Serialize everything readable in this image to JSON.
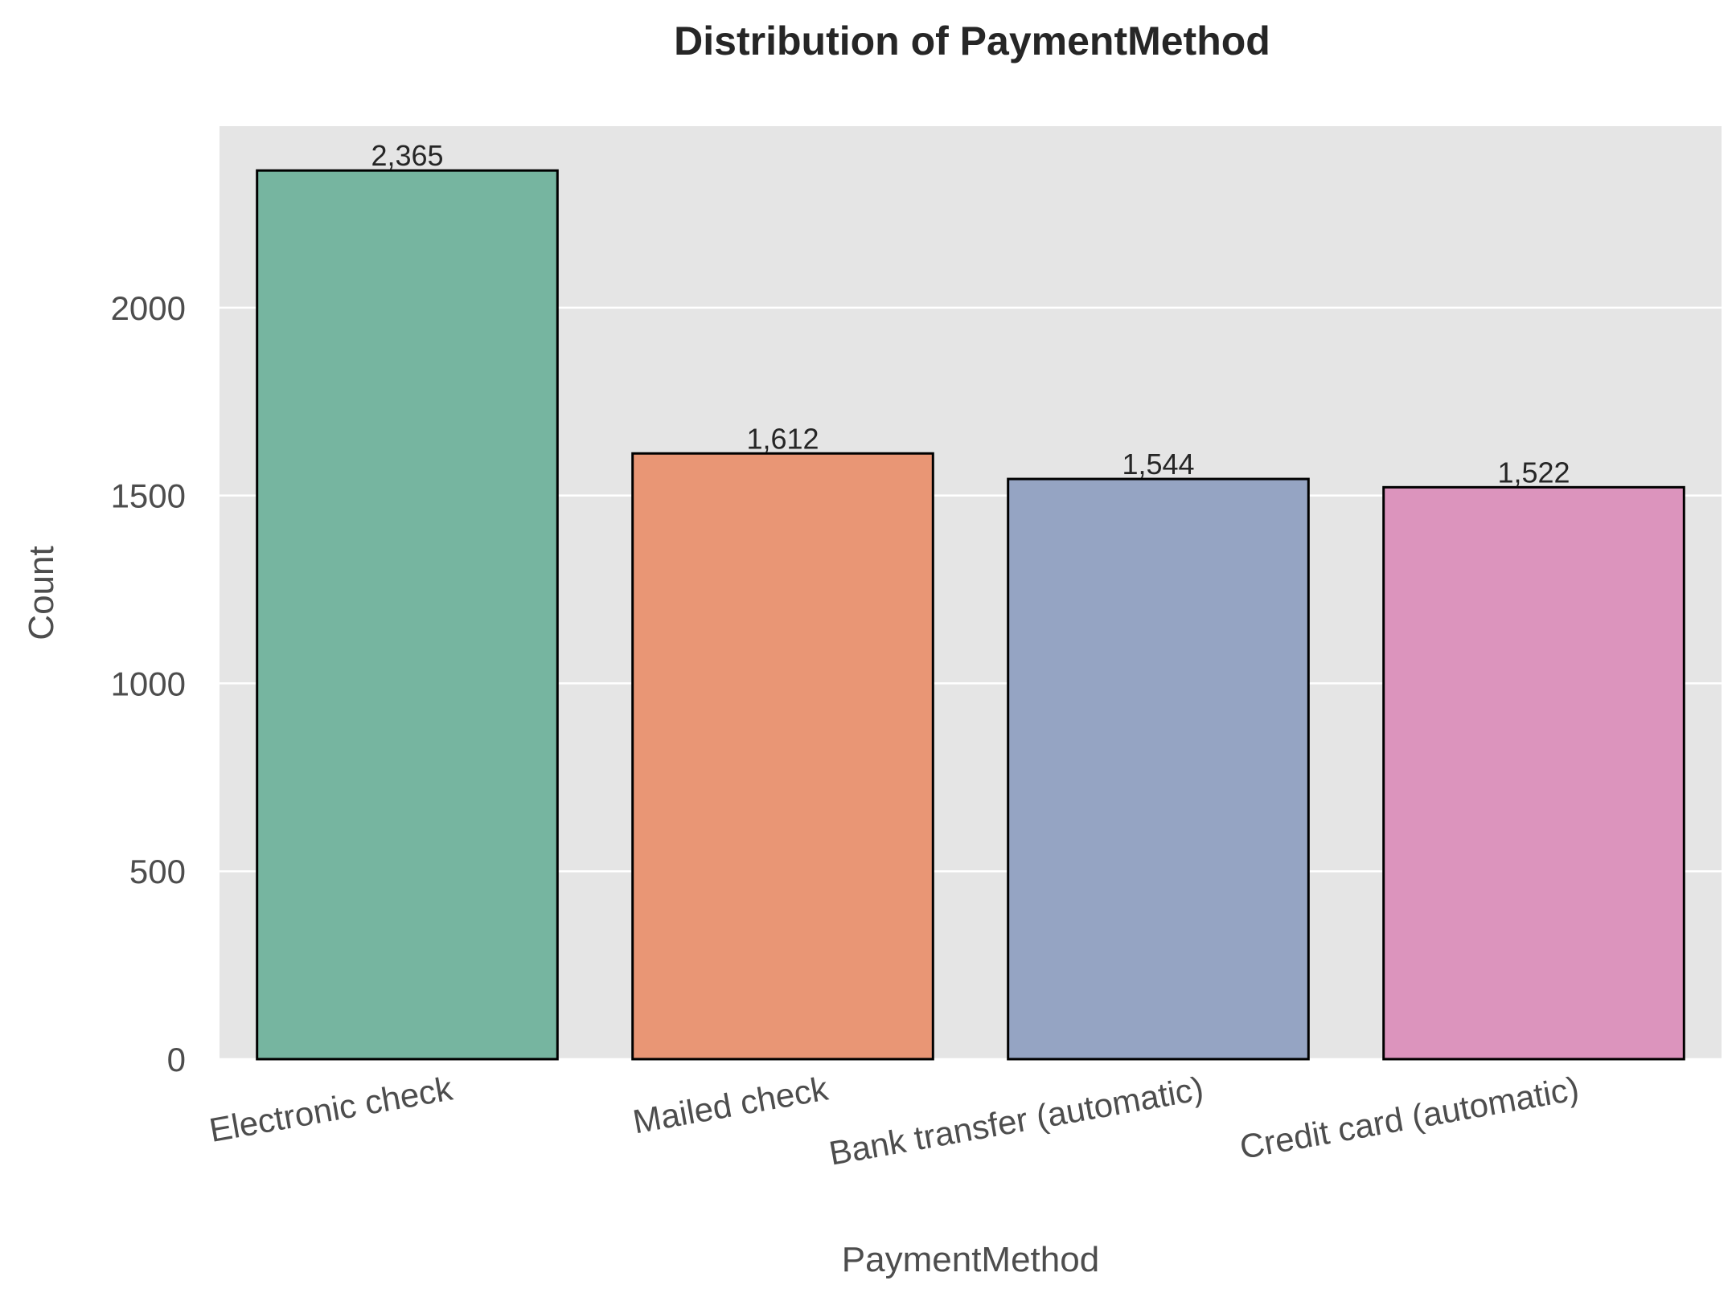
{
  "chart_data": {
    "type": "bar",
    "title": "Distribution of PaymentMethod",
    "xlabel": "PaymentMethod",
    "ylabel": "Count",
    "categories": [
      "Electronic check",
      "Mailed check",
      "Bank transfer (automatic)",
      "Credit card (automatic)"
    ],
    "values": [
      2365,
      1612,
      1544,
      1522
    ],
    "value_labels": [
      "2,365",
      "1,612",
      "1,544",
      "1,522"
    ],
    "colors": [
      "#76b5a0",
      "#e99675",
      "#95a4c3",
      "#dc94bd"
    ],
    "yticks": [
      0,
      500,
      1000,
      1500,
      2000
    ],
    "ylim": [
      0,
      2483
    ],
    "grid": "y",
    "plot_background": "#e5e5e5",
    "legend": "none"
  }
}
